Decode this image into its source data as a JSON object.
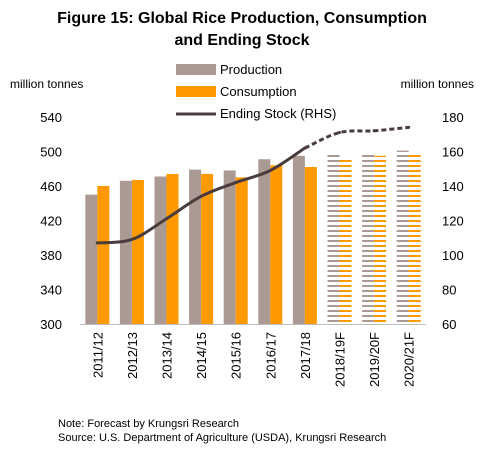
{
  "title_lines": [
    "Figure 15: Global Rice Production, Consumption",
    "and Ending Stock"
  ],
  "notes": {
    "note": "Note: Forecast by Krungsri Research",
    "source": "Source: U.S. Department of Agriculture (USDA), Krungsri Research"
  },
  "chart_data": {
    "type": "bar",
    "title": "Figure 15: Global Rice Production, Consumption and Ending Stock",
    "categories": [
      "2011/12",
      "2012/13",
      "2013/14",
      "2014/15",
      "2015/16",
      "2016/17",
      "2017/18",
      "2018/19F",
      "2019/20F",
      "2020/21F"
    ],
    "forecast_categories": [
      "2018/19F",
      "2019/20F",
      "2020/21F"
    ],
    "ylabel_left": "million tonnes",
    "ylabel_right": "million tonnes",
    "ylim_left": [
      300,
      540
    ],
    "yticks_left": [
      300,
      340,
      380,
      420,
      460,
      500,
      540
    ],
    "ylim_right": [
      60,
      180
    ],
    "yticks_right": [
      60,
      80,
      100,
      120,
      140,
      160,
      180
    ],
    "series": [
      {
        "name": "Production",
        "type": "bar",
        "axis": "left",
        "color": "#ab9a94",
        "values": [
          450,
          466,
          471,
          479,
          478,
          491,
          495,
          499,
          499,
          501
        ]
      },
      {
        "name": "Consumption",
        "type": "bar",
        "axis": "left",
        "color": "#ff9900",
        "values": [
          460,
          467,
          474,
          474,
          470,
          484,
          482,
          493,
          495,
          497
        ]
      },
      {
        "name": "Ending Stock (RHS)",
        "type": "line",
        "axis": "right",
        "color": "#4a3c3c",
        "values": [
          107,
          109,
          121,
          134,
          142,
          149,
          162,
          171,
          172,
          174
        ]
      }
    ],
    "legend_position": "top",
    "grid": false
  }
}
